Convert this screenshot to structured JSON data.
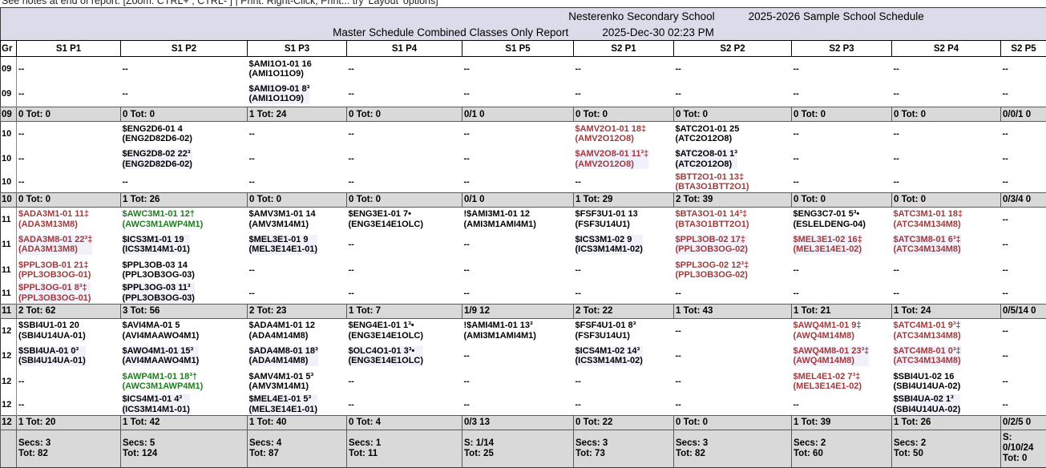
{
  "note": "See notes at end of report.     [Zoom: CTRL+ ; CTRL- ] | Print: Right-Click, Print... try 'Layout' options]",
  "header": {
    "school": "Nesterenko Secondary School",
    "schedule": "2025-2026 Sample School Schedule",
    "report": "Master Schedule Combined Classes Only Report",
    "datetime": "2025-Dec-30 02:23 PM"
  },
  "columns": [
    "Gr",
    "S1 P1",
    "S1 P2",
    "S1 P3",
    "S1 P4",
    "S1 P5",
    "S2 P1",
    "S2 P2",
    "S2 P3",
    "S2 P4",
    "S2 P5"
  ],
  "colors": {
    "combined_red": "#a03a3c",
    "combined_green": "#1e7d1e",
    "title_bg": "#dbdbea",
    "total_bg": "#d9d9d9",
    "row_tint": "#f1f1fb"
  },
  "grades": [
    {
      "gr": "09",
      "rows": [
        [
          "--",
          "--",
          {
            "lines": [
              "$AMI1O1-01 16",
              "(AMI1O11O9)"
            ]
          },
          "--",
          "--",
          "--",
          "--",
          "--",
          "--",
          "--"
        ],
        [
          "--",
          "--",
          {
            "lines": [
              "$AMI1O9-01 8³",
              "(AMI1O11O9)"
            ]
          },
          "--",
          "--",
          "--",
          "--",
          "--",
          "--",
          "--"
        ]
      ],
      "total": [
        "0 Tot: 0",
        "0 Tot: 0",
        "1 Tot: 24",
        "0 Tot: 0",
        "0/1 0",
        "0 Tot: 0",
        "0 Tot: 0",
        "0 Tot: 0",
        "0 Tot: 0",
        "0/0/1 0"
      ]
    },
    {
      "gr": "10",
      "rows": [
        [
          "--",
          {
            "lines": [
              "$ENG2D6-01 4",
              "(ENG2D82D6-02)"
            ]
          },
          "--",
          "--",
          "--",
          {
            "lines": [
              "$AMV2O1-01 18‡",
              "(AMV2O12O8)"
            ],
            "color": "red"
          },
          {
            "lines": [
              "$ATC2O1-01 25",
              "(ATC2O12O8)"
            ]
          },
          "--",
          "--",
          "--"
        ],
        [
          "--",
          {
            "lines": [
              "$ENG2D8-02 22³",
              "(ENG2D82D6-02)"
            ]
          },
          "--",
          "--",
          "--",
          {
            "lines": [
              "$AMV2O8-01 11³‡",
              "(AMV2O12O8)"
            ],
            "color": "red"
          },
          {
            "lines": [
              "$ATC2O8-01 1³",
              "(ATC2O12O8)"
            ]
          },
          "--",
          "--",
          "--"
        ],
        [
          "--",
          "--",
          "--",
          "--",
          "--",
          "--",
          {
            "lines": [
              "$BTT2O1-01 13‡",
              "(BTA3O1BTT2O1)"
            ],
            "color": "red"
          },
          "--",
          "--",
          "--"
        ]
      ],
      "total": [
        "0 Tot: 0",
        "1 Tot: 26",
        "0 Tot: 0",
        "0 Tot: 0",
        "0/1 0",
        "1 Tot: 29",
        "2 Tot: 39",
        "0 Tot: 0",
        "0 Tot: 0",
        "0/3/4 0"
      ]
    },
    {
      "gr": "11",
      "rows": [
        [
          {
            "lines": [
              "$ADA3M1-01 11‡",
              "(ADA3M13M8)"
            ],
            "color": "red"
          },
          {
            "lines": [
              "$AWC3M1-01 12†",
              "(AWC3M1AWP4M1)"
            ],
            "color": "green"
          },
          {
            "lines": [
              "$AMV3M1-01 14",
              "(AMV3M14M1)"
            ]
          },
          {
            "lines": [
              "$ENG3E1-01 7•",
              "(ENG3E14E1OLC)"
            ]
          },
          {
            "lines": [
              "!$AMI3M1-01 12",
              "(AMI3M1AMI4M1)"
            ]
          },
          {
            "lines": [
              "$FSF3U1-01 13",
              "(FSF3U14U1)"
            ]
          },
          {
            "lines": [
              "$BTA3O1-01 14³‡",
              "(BTA3O1BTT2O1)"
            ],
            "color": "red"
          },
          {
            "lines": [
              "$ENG3C7-01 5³•",
              "(ESLELDENG-04)"
            ]
          },
          {
            "lines": [
              "$ATC3M1-01 18‡",
              "(ATC34M134M8)"
            ],
            "color": "red"
          },
          "--"
        ],
        [
          {
            "lines": [
              "$ADA3M8-01 22³‡",
              "(ADA3M13M8)"
            ],
            "color": "red"
          },
          {
            "lines": [
              "$ICS3M1-01 19",
              "(ICS3M14M1-01)"
            ]
          },
          {
            "lines": [
              "$MEL3E1-01 9",
              "(MEL3E14E1-01)"
            ]
          },
          "--",
          "--",
          {
            "lines": [
              "$ICS3M1-02 9",
              "(ICS3M14M1-02)"
            ]
          },
          {
            "lines": [
              "$PPL3OB-02 17‡",
              "(PPL3OB3OG-02)"
            ],
            "color": "red"
          },
          {
            "lines": [
              "$MEL3E1-02 16‡",
              "(MEL3E14E1-02)"
            ],
            "color": "red"
          },
          {
            "lines": [
              "$ATC3M8-01 6³‡",
              "(ATC34M134M8)"
            ],
            "color": "red"
          },
          "--"
        ],
        [
          {
            "lines": [
              "$PPL3OB-01 21‡",
              "(PPL3OB3OG-01)"
            ],
            "color": "red"
          },
          {
            "lines": [
              "$PPL3OB-03 14",
              "(PPL3OB3OG-03)"
            ]
          },
          "--",
          "--",
          "--",
          "--",
          {
            "lines": [
              "$PPL3OG-02 12³‡",
              "(PPL3OB3OG-02)"
            ],
            "color": "red"
          },
          "--",
          "--",
          "--"
        ],
        [
          {
            "lines": [
              "$PPL3OG-01 8³‡",
              "(PPL3OB3OG-01)"
            ],
            "color": "red"
          },
          {
            "lines": [
              "$PPL3OG-03 11³",
              "(PPL3OB3OG-03)"
            ]
          },
          "--",
          "--",
          "--",
          "--",
          "--",
          "--",
          "--",
          "--"
        ]
      ],
      "total": [
        "2 Tot: 62",
        "3 Tot: 56",
        "2 Tot: 23",
        "1 Tot: 7",
        "1/9 12",
        "2 Tot: 22",
        "1 Tot: 43",
        "1 Tot: 21",
        "1 Tot: 24",
        "0/5/14 0"
      ]
    },
    {
      "gr": "12",
      "rows": [
        [
          {
            "lines": [
              "$SBI4U1-01 20",
              "(SBI4U14UA-01)"
            ]
          },
          {
            "lines": [
              "$AVI4MA-01 5",
              "(AVI4MAAWO4M1)"
            ]
          },
          {
            "lines": [
              "$ADA4M1-01 12",
              "(ADA4M14M8)"
            ]
          },
          {
            "lines": [
              "$ENG4E1-01 1³•",
              "(ENG3E14E1OLC)"
            ]
          },
          {
            "lines": [
              "!$AMI4M1-01 13³",
              "(AMI3M1AMI4M1)"
            ]
          },
          {
            "lines": [
              "$FSF4U1-01 8³",
              "(FSF3U14U1)"
            ]
          },
          "--",
          {
            "lines": [
              "$AWQ4M1-01 9‡",
              "(AWQ4M14M8)"
            ],
            "color": "red"
          },
          {
            "lines": [
              "$ATC4M1-01 9³‡",
              "(ATC34M134M8)"
            ],
            "color": "red"
          },
          "--"
        ],
        [
          {
            "lines": [
              "$SBI4UA-01 0³",
              "(SBI4U14UA-01)"
            ]
          },
          {
            "lines": [
              "$AWO4M1-01 15³",
              "(AVI4MAAWO4M1)"
            ]
          },
          {
            "lines": [
              "$ADA4M8-01 18³",
              "(ADA4M14M8)"
            ]
          },
          {
            "lines": [
              "$OLC4O1-01 3³•",
              "(ENG3E14E1OLC)"
            ]
          },
          "--",
          {
            "lines": [
              "$ICS4M1-02 14³",
              "(ICS3M14M1-02)"
            ]
          },
          "--",
          {
            "lines": [
              "$AWQ4M8-01 23³‡",
              "(AWQ4M14M8)"
            ],
            "color": "red"
          },
          {
            "lines": [
              "$ATC4M8-01 0³‡",
              "(ATC34M134M8)"
            ],
            "color": "red"
          },
          "--"
        ],
        [
          "--",
          {
            "lines": [
              "$AWP4M1-01 18³†",
              "(AWC3M1AWP4M1)"
            ],
            "color": "green"
          },
          {
            "lines": [
              "$AMV4M1-01 5³",
              "(AMV3M14M1)"
            ]
          },
          "--",
          "--",
          "--",
          "--",
          {
            "lines": [
              "$MEL4E1-02 7³‡",
              "(MEL3E14E1-02)"
            ],
            "color": "red"
          },
          {
            "lines": [
              "$SBI4U1-02 16",
              "(SBI4U14UA-02)"
            ]
          },
          "--"
        ],
        [
          "--",
          {
            "lines": [
              "$ICS4M1-01 4³",
              "(ICS3M14M1-01)"
            ]
          },
          {
            "lines": [
              "$MEL4E1-01 5³",
              "(MEL3E14E1-01)"
            ]
          },
          "--",
          "--",
          "--",
          "--",
          "--",
          {
            "lines": [
              "$SBI4UA-02 1³",
              "(SBI4U14UA-02)"
            ]
          },
          "--"
        ]
      ],
      "total": [
        "1 Tot: 20",
        "1 Tot: 42",
        "1 Tot: 40",
        "0 Tot: 4",
        "0/3 13",
        "0 Tot: 22",
        "0 Tot: 0",
        "1 Tot: 39",
        "1 Tot: 26",
        "0/2/5 0"
      ]
    }
  ],
  "summary": {
    "cells": [
      [
        "Secs: 3",
        "Tot: 82"
      ],
      [
        "Secs: 5",
        "Tot: 124"
      ],
      [
        "Secs: 4",
        "Tot: 87"
      ],
      [
        "Secs: 1",
        "Tot: 11"
      ],
      [
        "S: 1/14",
        "Tot: 25"
      ],
      [
        "Secs: 3",
        "Tot: 73"
      ],
      [
        "Secs: 3",
        "Tot: 82"
      ],
      [
        "Secs: 2",
        "Tot: 60"
      ],
      [
        "Secs: 2",
        "Tot: 50"
      ],
      [
        "S:",
        "0/10/24",
        "Tot: 0"
      ]
    ]
  }
}
